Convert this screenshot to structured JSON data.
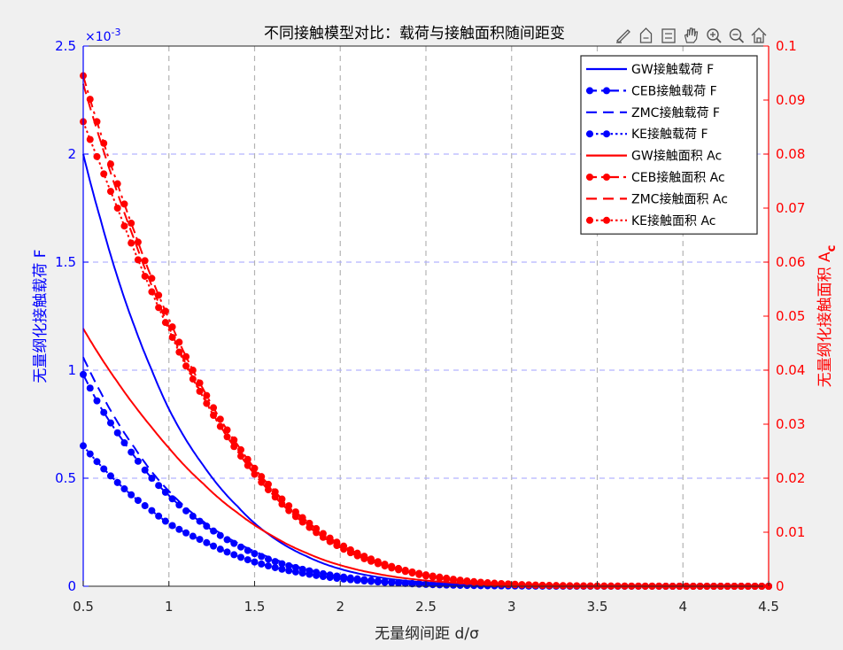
{
  "toolbar": {
    "icons": [
      "brush-icon",
      "data-tip-icon",
      "legend-icon",
      "pan-hand-icon",
      "zoom-in-icon",
      "zoom-out-icon",
      "home-icon"
    ]
  },
  "colors": {
    "figure_bg": "#f0f0f0",
    "axes_bg": "#ffffff",
    "left_axis": "#0000ff",
    "right_axis": "#ff0000",
    "grid_x": "#b3b3b3",
    "grid_y": "#b3b3ff",
    "legend_border": "#262626"
  },
  "chart_data": {
    "type": "line",
    "title": "不同接触模型对比：载荷与接触面积随间距变",
    "xlabel": "无量纲间距 d/σ",
    "ylabel_left": "无量纲化接触载荷 F",
    "ylabel_right_main": "无量纲化接触面积 A",
    "ylabel_right_sub": "c",
    "left_axis_exponent_base": "×10",
    "left_axis_exponent_power": "-3",
    "xlim": [
      0.5,
      4.5
    ],
    "ylim_left": [
      0,
      0.0025
    ],
    "ylim_right": [
      0,
      0.1
    ],
    "grid": true,
    "legend_position": "top-right",
    "x_ticks": [
      {
        "v": 0.5,
        "label": "0.5"
      },
      {
        "v": 1,
        "label": "1"
      },
      {
        "v": 1.5,
        "label": "1.5"
      },
      {
        "v": 2,
        "label": "2"
      },
      {
        "v": 2.5,
        "label": "2.5"
      },
      {
        "v": 3,
        "label": "3"
      },
      {
        "v": 3.5,
        "label": "3.5"
      },
      {
        "v": 4,
        "label": "4"
      },
      {
        "v": 4.5,
        "label": "4.5"
      }
    ],
    "y_ticks_left": [
      {
        "v": 0,
        "label": "0"
      },
      {
        "v": 0.0005,
        "label": "0.5"
      },
      {
        "v": 0.001,
        "label": "1"
      },
      {
        "v": 0.0015,
        "label": "1.5"
      },
      {
        "v": 0.002,
        "label": "2"
      },
      {
        "v": 0.0025,
        "label": "2.5"
      }
    ],
    "y_ticks_right": [
      {
        "v": 0,
        "label": "0"
      },
      {
        "v": 0.01,
        "label": "0.01"
      },
      {
        "v": 0.02,
        "label": "0.02"
      },
      {
        "v": 0.03,
        "label": "0.03"
      },
      {
        "v": 0.04,
        "label": "0.04"
      },
      {
        "v": 0.05,
        "label": "0.05"
      },
      {
        "v": 0.06,
        "label": "0.06"
      },
      {
        "v": 0.07,
        "label": "0.07"
      },
      {
        "v": 0.08,
        "label": "0.08"
      },
      {
        "v": 0.09,
        "label": "0.09"
      },
      {
        "v": 0.1,
        "label": "0.1"
      }
    ],
    "x": [
      0.5,
      0.6,
      0.7,
      0.8,
      0.9,
      1.0,
      1.2,
      1.4,
      1.6,
      1.8,
      2.0,
      2.2,
      2.4,
      2.6,
      2.8,
      3.0,
      3.5,
      4.0,
      4.5
    ],
    "series": [
      {
        "name": "GW接触载荷 F",
        "axis": "left",
        "color": "#0000ff",
        "dash": "solid",
        "marker": false,
        "values": [
          0.002,
          0.0017,
          0.00143,
          0.0012,
          0.001,
          0.00082,
          0.00056,
          0.00037,
          0.00023,
          0.00014,
          8e-05,
          4.5e-05,
          2.4e-05,
          1.2e-05,
          6e-06,
          3e-06,
          5e-07,
          1e-07,
          0.0
        ]
      },
      {
        "name": "CEB接触载荷 F",
        "axis": "left",
        "color": "#0000ff",
        "dash": "dashdot",
        "marker": true,
        "values": [
          0.00098,
          0.00083,
          0.00071,
          0.0006,
          0.0005,
          0.00042,
          0.00029,
          0.00019,
          0.00012,
          7.5e-05,
          4.5e-05,
          2.6e-05,
          1.4e-05,
          7e-06,
          3.5e-06,
          1.7e-06,
          3e-07,
          0.0,
          0.0
        ]
      },
      {
        "name": "ZMC接触载荷 F",
        "axis": "left",
        "color": "#0000ff",
        "dash": "dashed",
        "marker": false,
        "values": [
          0.00106,
          0.0009,
          0.00076,
          0.00064,
          0.00053,
          0.00044,
          0.0003,
          0.0002,
          0.00013,
          8e-05,
          4.7e-05,
          2.7e-05,
          1.5e-05,
          8e-06,
          4e-06,
          2e-06,
          3e-07,
          0.0,
          0.0
        ]
      },
      {
        "name": "KE接触载荷 F",
        "axis": "left",
        "color": "#0000ff",
        "dash": "dotted",
        "marker": true,
        "values": [
          0.00065,
          0.00056,
          0.00048,
          0.00041,
          0.00035,
          0.00029,
          0.00021,
          0.00014,
          9e-05,
          5.8e-05,
          3.5e-05,
          2.1e-05,
          1.2e-05,
          6e-06,
          3e-06,
          1.5e-06,
          2e-07,
          0.0,
          0.0
        ]
      },
      {
        "name": "GW接触面积 Ac",
        "axis": "right",
        "color": "#ff0000",
        "dash": "solid",
        "marker": false,
        "values": [
          0.0477,
          0.0425,
          0.0378,
          0.0334,
          0.0294,
          0.0256,
          0.019,
          0.0136,
          0.0094,
          0.0062,
          0.0039,
          0.0024,
          0.0014,
          0.0008,
          0.0004,
          0.0002,
          3e-05,
          0.0,
          0.0
        ]
      },
      {
        "name": "CEB接触面积 Ac",
        "axis": "right",
        "color": "#ff0000",
        "dash": "dashdot",
        "marker": true,
        "values": [
          0.0945,
          0.084,
          0.0745,
          0.0655,
          0.057,
          0.0495,
          0.0365,
          0.0262,
          0.0182,
          0.0122,
          0.0078,
          0.0048,
          0.0028,
          0.0016,
          0.0008,
          0.0004,
          5e-05,
          0.0,
          0.0
        ]
      },
      {
        "name": "ZMC接触面积 Ac",
        "axis": "right",
        "color": "#ff0000",
        "dash": "dashed",
        "marker": false,
        "values": [
          0.093,
          0.0825,
          0.0728,
          0.064,
          0.0556,
          0.048,
          0.0352,
          0.025,
          0.0172,
          0.0114,
          0.0072,
          0.0044,
          0.0026,
          0.0014,
          0.0007,
          0.0003,
          4e-05,
          0.0,
          0.0
        ]
      },
      {
        "name": "KE接触面积 Ac",
        "axis": "right",
        "color": "#ff0000",
        "dash": "dotted",
        "marker": true,
        "values": [
          0.086,
          0.078,
          0.07,
          0.062,
          0.0545,
          0.0475,
          0.035,
          0.025,
          0.0172,
          0.0114,
          0.0072,
          0.0044,
          0.0026,
          0.0014,
          0.0007,
          0.0003,
          4e-05,
          0.0,
          0.0
        ]
      }
    ]
  }
}
